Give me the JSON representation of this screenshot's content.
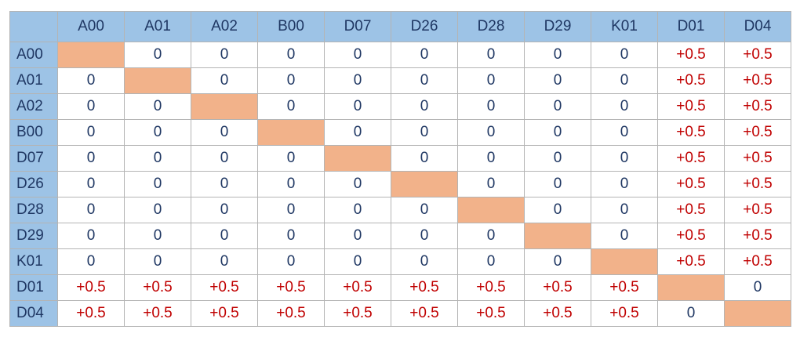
{
  "chart_data": {
    "type": "table",
    "columns": [
      "A00",
      "A01",
      "A02",
      "B00",
      "D07",
      "D26",
      "D28",
      "D29",
      "K01",
      "D01",
      "D04"
    ],
    "rows": [
      {
        "label": "A00",
        "values": [
          "",
          "0",
          "0",
          "0",
          "0",
          "0",
          "0",
          "0",
          "0",
          "+0.5",
          "+0.5"
        ]
      },
      {
        "label": "A01",
        "values": [
          "0",
          "",
          "0",
          "0",
          "0",
          "0",
          "0",
          "0",
          "0",
          "+0.5",
          "+0.5"
        ]
      },
      {
        "label": "A02",
        "values": [
          "0",
          "0",
          "",
          "0",
          "0",
          "0",
          "0",
          "0",
          "0",
          "+0.5",
          "+0.5"
        ]
      },
      {
        "label": "B00",
        "values": [
          "0",
          "0",
          "0",
          "",
          "0",
          "0",
          "0",
          "0",
          "0",
          "+0.5",
          "+0.5"
        ]
      },
      {
        "label": "D07",
        "values": [
          "0",
          "0",
          "0",
          "0",
          "",
          "0",
          "0",
          "0",
          "0",
          "+0.5",
          "+0.5"
        ]
      },
      {
        "label": "D26",
        "values": [
          "0",
          "0",
          "0",
          "0",
          "0",
          "",
          "0",
          "0",
          "0",
          "+0.5",
          "+0.5"
        ]
      },
      {
        "label": "D28",
        "values": [
          "0",
          "0",
          "0",
          "0",
          "0",
          "0",
          "",
          "0",
          "0",
          "+0.5",
          "+0.5"
        ]
      },
      {
        "label": "D29",
        "values": [
          "0",
          "0",
          "0",
          "0",
          "0",
          "0",
          "0",
          "",
          "0",
          "+0.5",
          "+0.5"
        ]
      },
      {
        "label": "K01",
        "values": [
          "0",
          "0",
          "0",
          "0",
          "0",
          "0",
          "0",
          "0",
          "",
          "+0.5",
          "+0.5"
        ]
      },
      {
        "label": "D01",
        "values": [
          "+0.5",
          "+0.5",
          "+0.5",
          "+0.5",
          "+0.5",
          "+0.5",
          "+0.5",
          "+0.5",
          "+0.5",
          "",
          "0"
        ]
      },
      {
        "label": "D04",
        "values": [
          "+0.5",
          "+0.5",
          "+0.5",
          "+0.5",
          "+0.5",
          "+0.5",
          "+0.5",
          "+0.5",
          "+0.5",
          "0",
          ""
        ]
      }
    ],
    "colors": {
      "header_bg": "#9dc3e6",
      "header_text": "#1f3763",
      "zero_text": "#1f3763",
      "positive_text": "#c00000",
      "diagonal_fill": "#f2b28a",
      "grid": "#b4b4b4"
    }
  }
}
